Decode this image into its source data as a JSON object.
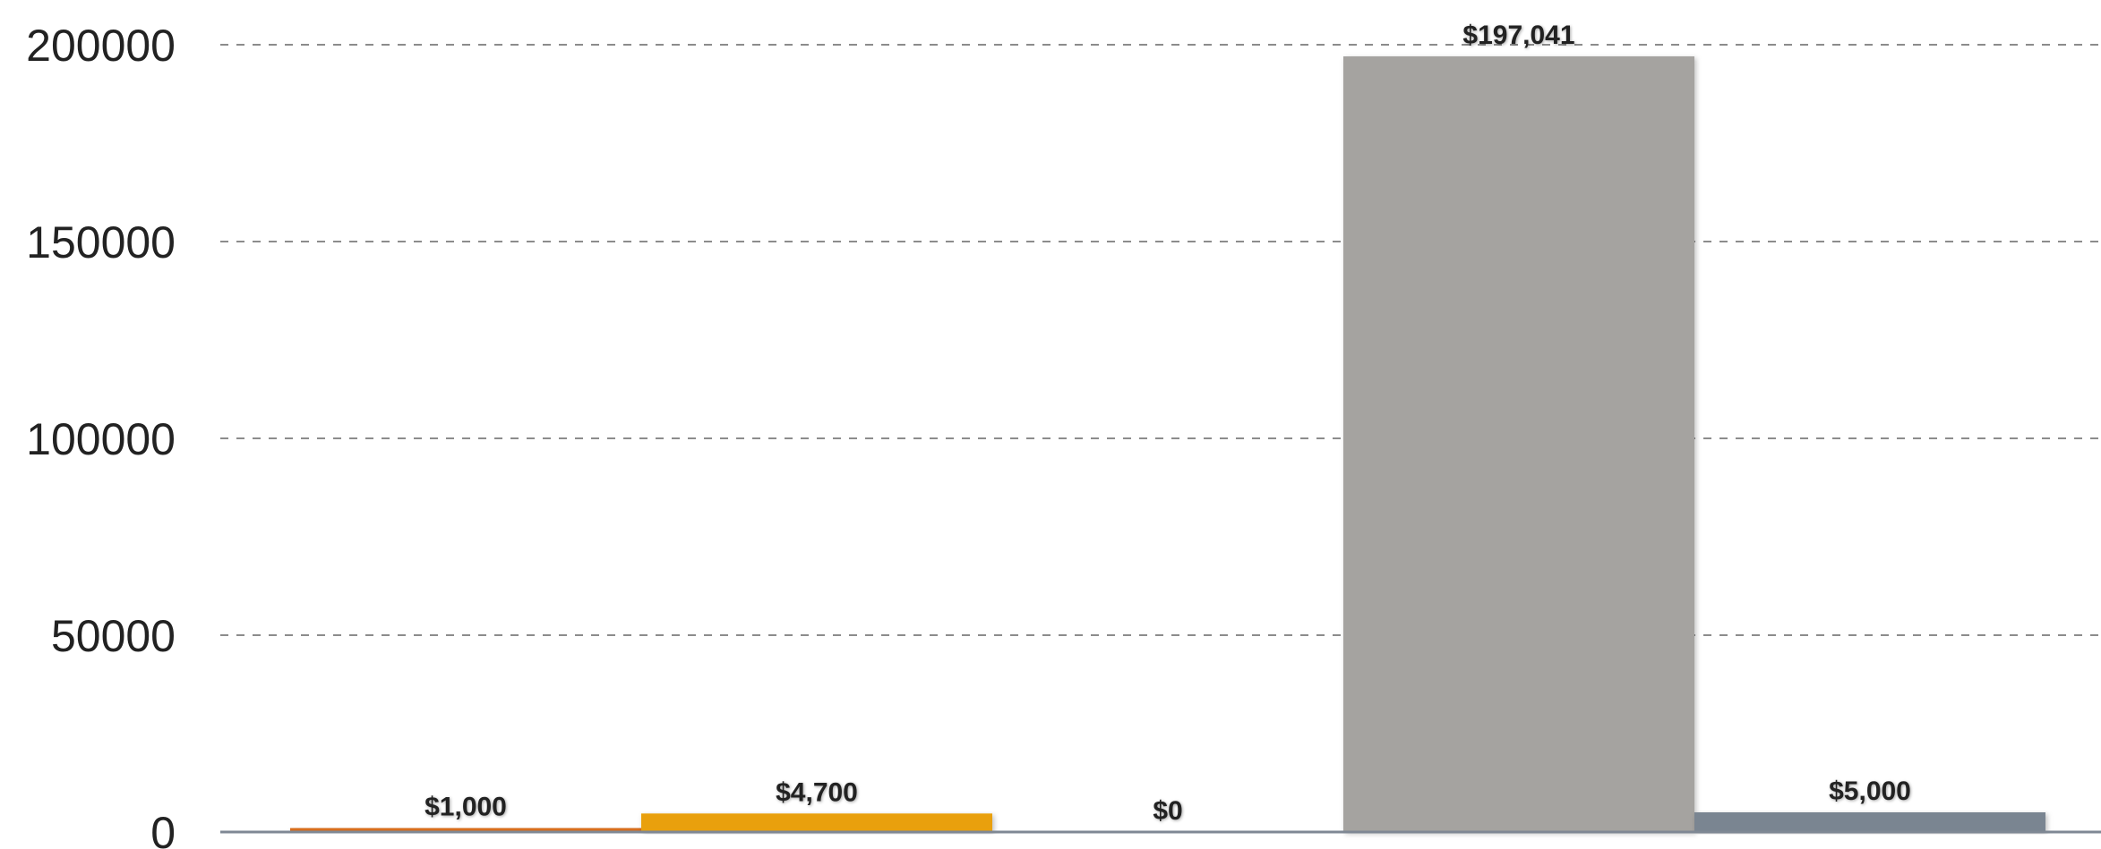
{
  "chart_data": {
    "type": "bar",
    "title": "",
    "xlabel": "",
    "ylabel": "",
    "ylim": [
      0,
      200000
    ],
    "yticks": [
      0,
      50000,
      100000,
      150000,
      200000
    ],
    "ytick_labels": [
      "0",
      "50000",
      "100000",
      "150000",
      "200000"
    ],
    "grid": true,
    "legend": "none",
    "bars": [
      {
        "value": 1000,
        "label": "$1,000",
        "color": "#d86d1a"
      },
      {
        "value": 4700,
        "label": "$4,700",
        "color": "#e9a010"
      },
      {
        "value": 0,
        "label": "$0",
        "color": "#c9a227"
      },
      {
        "value": 197041,
        "label": "$197,041",
        "color": "#a5a3a0"
      },
      {
        "value": 5000,
        "label": "$5,000",
        "color": "#7a8591"
      }
    ]
  }
}
